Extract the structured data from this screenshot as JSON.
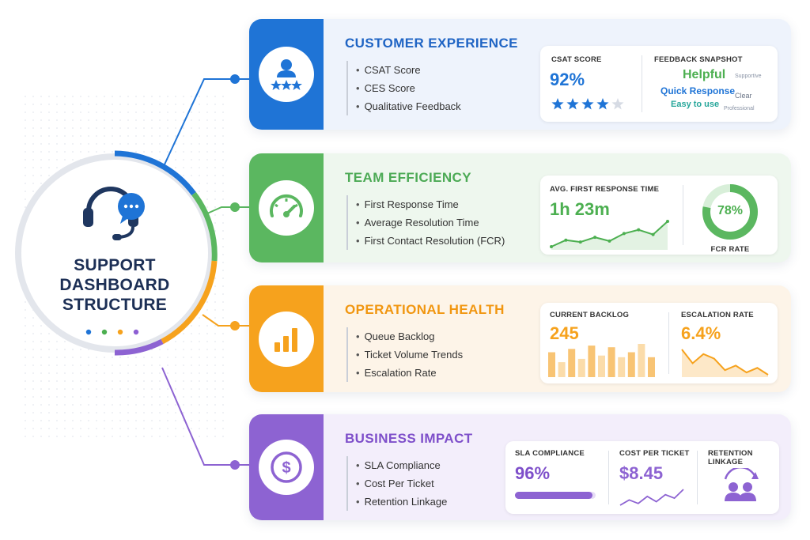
{
  "hub": {
    "title_lines": [
      "SUPPORT",
      "DASHBOARD",
      "STRUCTURE"
    ],
    "dot_colors": [
      "#1f74d6",
      "#4caf50",
      "#f6a21d",
      "#8d5fd3"
    ]
  },
  "colors": {
    "blue": "#1f74d6",
    "green": "#5bb760",
    "orange": "#f6a21d",
    "purple": "#8d63d2"
  },
  "cards": {
    "customer_experience": {
      "title": "CUSTOMER EXPERIENCE",
      "icon": "user-star-icon",
      "items": [
        "CSAT Score",
        "CES Score",
        "Qualitative Feedback"
      ],
      "csat": {
        "label": "CSAT SCORE",
        "value": "92%",
        "stars": 4,
        "stars_max": 5
      },
      "feedback": {
        "label": "FEEDBACK SNAPSHOT",
        "words": [
          "Helpful",
          "Supportive",
          "Quick Response",
          "Clear",
          "Easy to use",
          "Professional"
        ]
      }
    },
    "team_efficiency": {
      "title": "TEAM EFFICIENCY",
      "icon": "speedometer-icon",
      "items": [
        "First Response Time",
        "Average Resolution Time",
        "First Contact Resolution (FCR)"
      ],
      "frt": {
        "label": "AVG. FIRST RESPONSE TIME",
        "value": "1h 23m",
        "trend": [
          28,
          35,
          33,
          38,
          34,
          42,
          46,
          41,
          55
        ]
      },
      "fcr": {
        "label": "FCR RATE",
        "value": "78%",
        "fraction": 0.78
      }
    },
    "operational_health": {
      "title": "OPERATIONAL HEALTH",
      "icon": "bar-chart-icon",
      "items": [
        "Queue Backlog",
        "Ticket Volume Trends",
        "Escalation Rate"
      ],
      "backlog": {
        "label": "CURRENT BACKLOG",
        "value": "245",
        "bars": [
          30,
          18,
          34,
          22,
          38,
          26,
          36,
          24,
          30,
          40,
          24
        ]
      },
      "escalation": {
        "label": "ESCALATION RATE",
        "value": "6.4%",
        "trend": [
          30,
          18,
          26,
          22,
          12,
          16,
          10,
          14,
          8
        ]
      }
    },
    "business_impact": {
      "title": "BUSINESS IMPACT",
      "icon": "dollar-icon",
      "items": [
        "SLA Compliance",
        "Cost Per Ticket",
        "Retention Linkage"
      ],
      "sla": {
        "label": "SLA COMPLIANCE",
        "value": "96%",
        "fraction": 0.96
      },
      "cost": {
        "label": "COST PER TICKET",
        "value": "$8.45",
        "trend": [
          10,
          16,
          12,
          20,
          14,
          22,
          18,
          28
        ]
      },
      "retention": {
        "label": "RETENTION LINKAGE",
        "icon": "retention-users-icon"
      }
    }
  }
}
